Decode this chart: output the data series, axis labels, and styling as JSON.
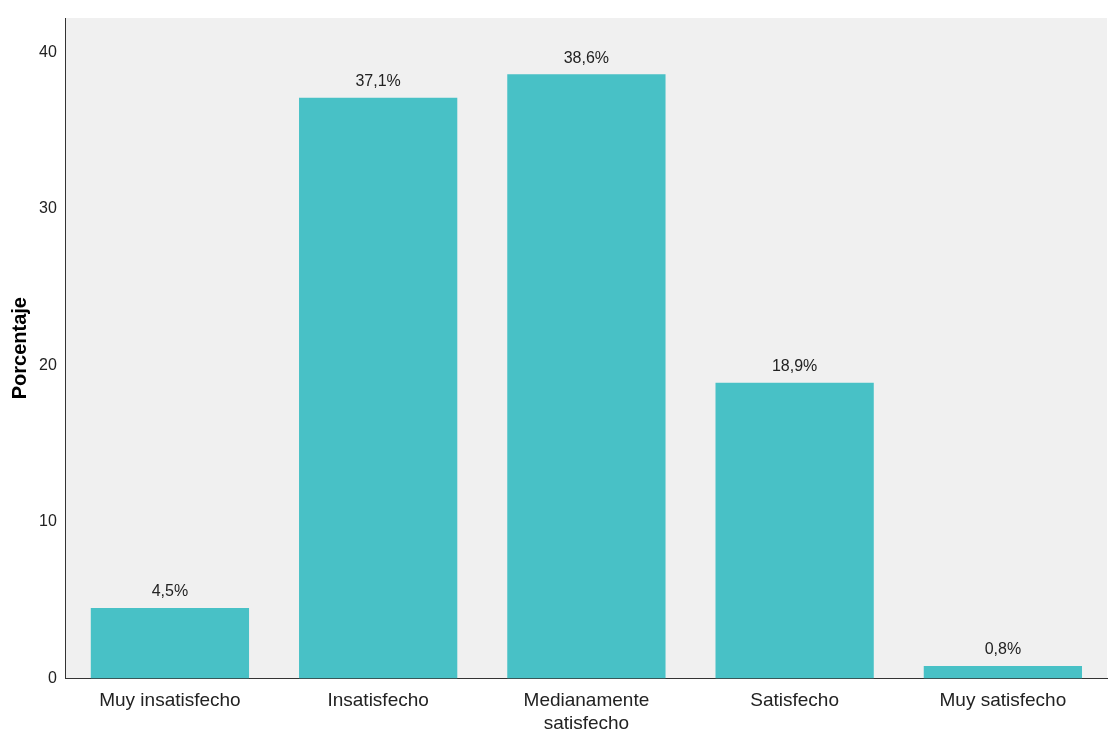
{
  "chart_data": {
    "type": "bar",
    "ylabel": "Porcentaje",
    "categories": [
      "Muy insatisfecho",
      "Insatisfecho",
      "Medianamente satisfecho",
      "Satisfecho",
      "Muy satisfecho"
    ],
    "values": [
      4.5,
      37.1,
      38.6,
      18.9,
      0.8
    ],
    "value_labels": [
      "4,5%",
      "37,1%",
      "38,6%",
      "18,9%",
      "0,8%"
    ],
    "color": "#48c1c6",
    "ylim": [
      0,
      42.2
    ],
    "yticks": [
      0,
      10,
      20,
      30,
      40
    ],
    "grid": false,
    "legend": false
  }
}
